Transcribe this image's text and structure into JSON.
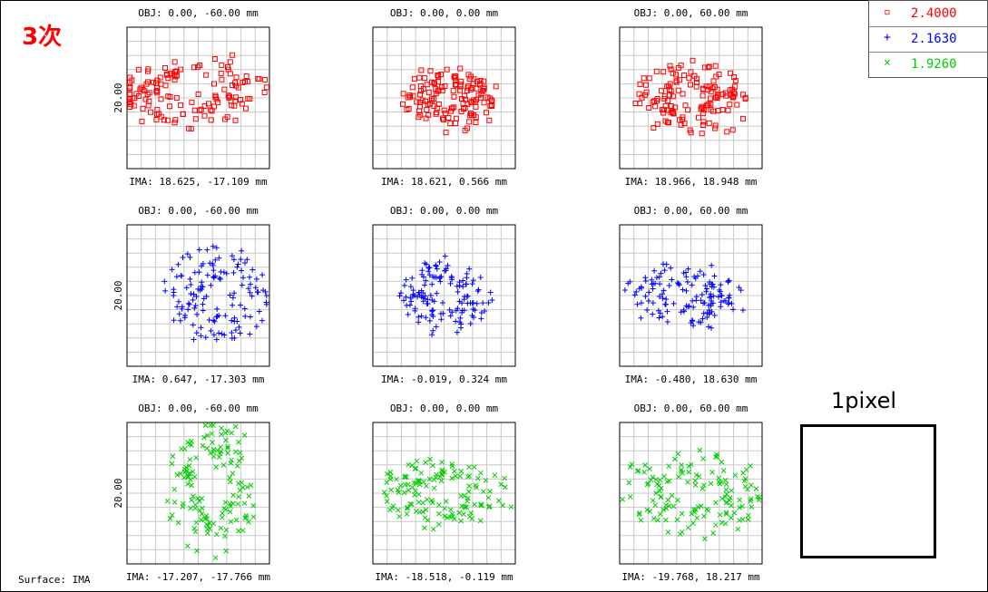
{
  "header": {
    "tag": "3次"
  },
  "footer": {
    "surface": "Surface: IMA"
  },
  "scale_box": {
    "label": "1pixel"
  },
  "colors": {
    "red": "#ff0000",
    "blue": "#0000ff",
    "green": "#00cc00"
  },
  "chart_data": {
    "type": "scatter",
    "plot_kind": "spot-diagram",
    "series": [
      {
        "name": "2.4000",
        "color": "#ff0000",
        "marker": "square"
      },
      {
        "name": "2.1630",
        "color": "#0000ff",
        "marker": "plus"
      },
      {
        "name": "1.9260",
        "color": "#00cc00",
        "marker": "cross"
      }
    ],
    "grid": true,
    "scale_label": "20.00",
    "rows": [
      {
        "series_index": 0,
        "cells": [
          {
            "obj": "OBJ: 0.00, -60.00 mm",
            "ima": "IMA: 18.625, -17.109 mm",
            "show_scale": true
          },
          {
            "obj": "OBJ: 0.00, 0.00 mm",
            "ima": "IMA: 18.621, 0.566 mm",
            "show_scale": false
          },
          {
            "obj": "OBJ: 0.00, 60.00 mm",
            "ima": "IMA: 18.966, 18.948 mm",
            "show_scale": false
          }
        ]
      },
      {
        "series_index": 1,
        "cells": [
          {
            "obj": "OBJ: 0.00, -60.00 mm",
            "ima": "IMA: 0.647, -17.303 mm",
            "show_scale": true
          },
          {
            "obj": "OBJ: 0.00, 0.00 mm",
            "ima": "IMA: -0.019, 0.324 mm",
            "show_scale": false
          },
          {
            "obj": "OBJ: 0.00, 60.00 mm",
            "ima": "IMA: -0.480, 18.630 mm",
            "show_scale": false
          }
        ]
      },
      {
        "series_index": 2,
        "cells": [
          {
            "obj": "OBJ: 0.00, -60.00 mm",
            "ima": "IMA: -17.207, -17.766 mm",
            "show_scale": true
          },
          {
            "obj": "OBJ: 0.00, 0.00 mm",
            "ima": "IMA: -18.518, -0.119 mm",
            "show_scale": false
          },
          {
            "obj": "OBJ: 0.00, 60.00 mm",
            "ima": "IMA: -19.768, 18.217 mm",
            "show_scale": false
          }
        ]
      }
    ]
  }
}
